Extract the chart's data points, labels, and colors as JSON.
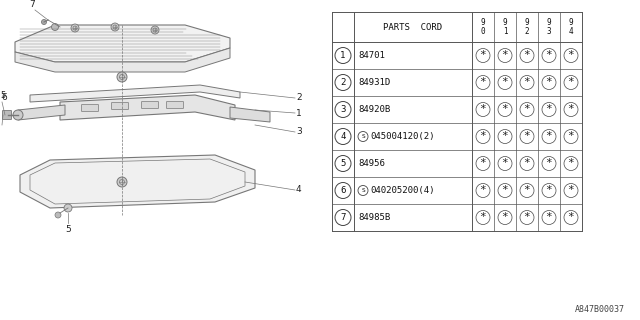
{
  "bg_color": "#ffffff",
  "diagram_label": "A847B00037",
  "lc": "#777777",
  "table": {
    "col_headers": [
      "9\n0",
      "9\n1",
      "9\n2",
      "9\n3",
      "9\n4"
    ],
    "rows": [
      {
        "num": "1",
        "code": "84701",
        "special": false
      },
      {
        "num": "2",
        "code": "84931D",
        "special": false
      },
      {
        "num": "3",
        "code": "84920B",
        "special": false
      },
      {
        "num": "4",
        "code": "045004120(2)",
        "special": true
      },
      {
        "num": "5",
        "code": "84956",
        "special": false
      },
      {
        "num": "6",
        "code": "040205200(4)",
        "special": true
      },
      {
        "num": "7",
        "code": "84985B",
        "special": false
      }
    ]
  }
}
